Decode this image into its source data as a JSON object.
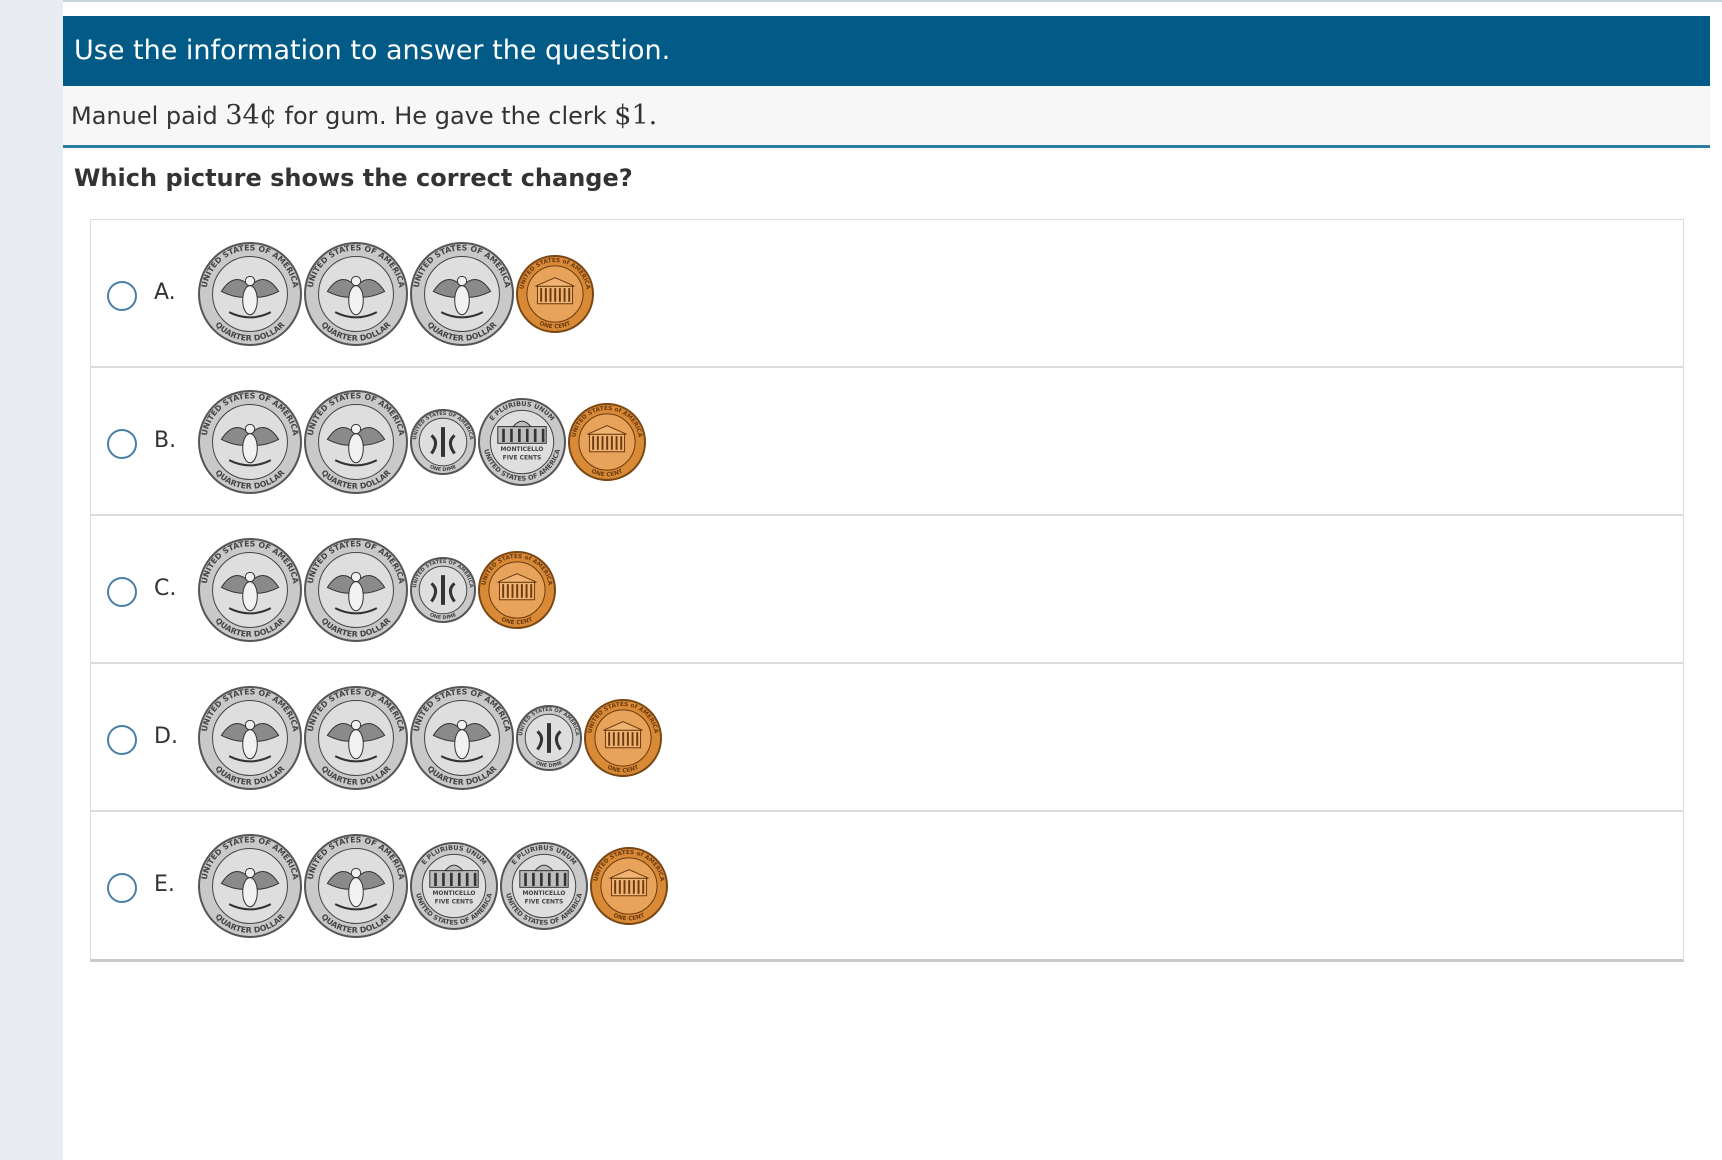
{
  "banner": {
    "text": "Use the information to answer the question."
  },
  "stimulus": {
    "part1": "Manuel paid ",
    "amount_paid": "34¢",
    "part2": " for gum. He gave the clerk ",
    "amount_given": "$1",
    "part3": "."
  },
  "question": "Which picture shows the correct change?",
  "coin_legends": {
    "quarter_top": "UNITED STATES OF AMERICA",
    "quarter_bottom": "QUARTER DOLLAR",
    "dime_top": "UNITED STATES OF AMERICA",
    "dime_bottom": "ONE DIME",
    "nickel_top": "E PLURIBUS UNUM",
    "nickel_bottom": "UNITED STATES OF AMERICA",
    "nickel_center": "FIVE CENTS",
    "nickel_building": "MONTICELLO",
    "penny_top": "UNITED STATES of AMERICA",
    "penny_bottom": "ONE CENT"
  },
  "choices": [
    {
      "letter": "A.",
      "coins": [
        "quarter",
        "quarter",
        "quarter",
        "penny"
      ]
    },
    {
      "letter": "B.",
      "coins": [
        "quarter",
        "quarter",
        "dime",
        "nickel",
        "penny"
      ]
    },
    {
      "letter": "C.",
      "coins": [
        "quarter",
        "quarter",
        "dime",
        "penny"
      ]
    },
    {
      "letter": "D.",
      "coins": [
        "quarter",
        "quarter",
        "quarter",
        "dime",
        "penny"
      ]
    },
    {
      "letter": "E.",
      "coins": [
        "quarter",
        "quarter",
        "nickel",
        "nickel",
        "penny"
      ]
    }
  ],
  "colors": {
    "banner": "#025a87",
    "accent": "#2b7ca3",
    "silver": "#c9c9c9",
    "copper": "#d98a36"
  }
}
